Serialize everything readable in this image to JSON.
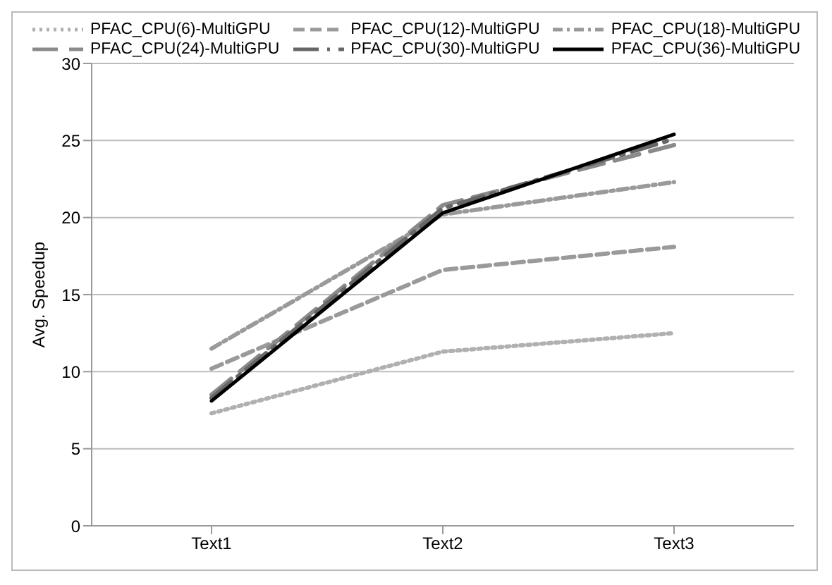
{
  "chart_data": {
    "type": "line",
    "ylabel": "Avg. Speedup",
    "categories": [
      "Text1",
      "Text2",
      "Text3"
    ],
    "ylim": [
      0,
      30
    ],
    "yticks": [
      0,
      5,
      10,
      15,
      20,
      25,
      30
    ],
    "grid": "y",
    "legend": "top",
    "marker": "none",
    "series": [
      {
        "name": "PFAC_CPU(6)-MultiGPU",
        "color": "#b0b0b0",
        "line_style": "dotted",
        "values": [
          7.3,
          11.3,
          12.5
        ]
      },
      {
        "name": "PFAC_CPU(12)-MultiGPU",
        "color": "#9a9a9a",
        "line_style": "dashed",
        "values": [
          10.2,
          16.6,
          18.1
        ]
      },
      {
        "name": "PFAC_CPU(18)-MultiGPU",
        "color": "#9a9a9a",
        "line_style": "dashed",
        "values": [
          11.5,
          20.2,
          22.3
        ]
      },
      {
        "name": "PFAC_CPU(24)-MultiGPU",
        "color": "#8a8a8a",
        "line_style": "dashed",
        "values": [
          8.5,
          20.8,
          24.7
        ]
      },
      {
        "name": "PFAC_CPU(30)-MultiGPU",
        "color": "#666666",
        "line_style": "dashed",
        "values": [
          8.3,
          20.6,
          25.1
        ]
      },
      {
        "name": "PFAC_CPU(36)-MultiGPU",
        "color": "#000000",
        "line_style": "solid",
        "values": [
          8.1,
          20.3,
          25.4
        ]
      }
    ]
  }
}
